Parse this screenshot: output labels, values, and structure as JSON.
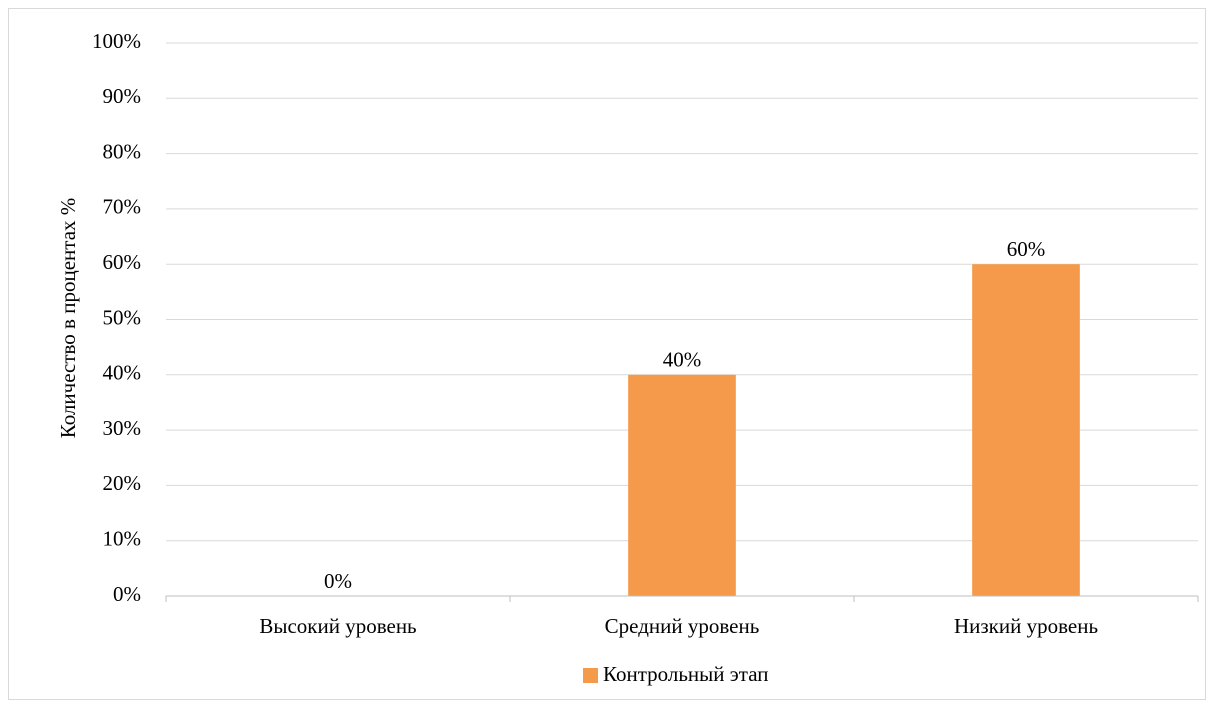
{
  "chart_data": {
    "type": "bar",
    "categories": [
      "Высокий уровень",
      "Средний уровень",
      "Низкий уровень"
    ],
    "series": [
      {
        "name": "Контрольный этап",
        "values": [
          0,
          40,
          60
        ],
        "labels": [
          "0%",
          "40%",
          "60%"
        ],
        "color": "#f59a4a"
      }
    ],
    "ylabel": "Количество в процентах %",
    "xlabel": "",
    "ylim": [
      0,
      100
    ],
    "yticks": [
      "0%",
      "10%",
      "20%",
      "30%",
      "40%",
      "50%",
      "60%",
      "70%",
      "80%",
      "90%",
      "100%"
    ],
    "grid": true,
    "legend": "bottom-center"
  }
}
